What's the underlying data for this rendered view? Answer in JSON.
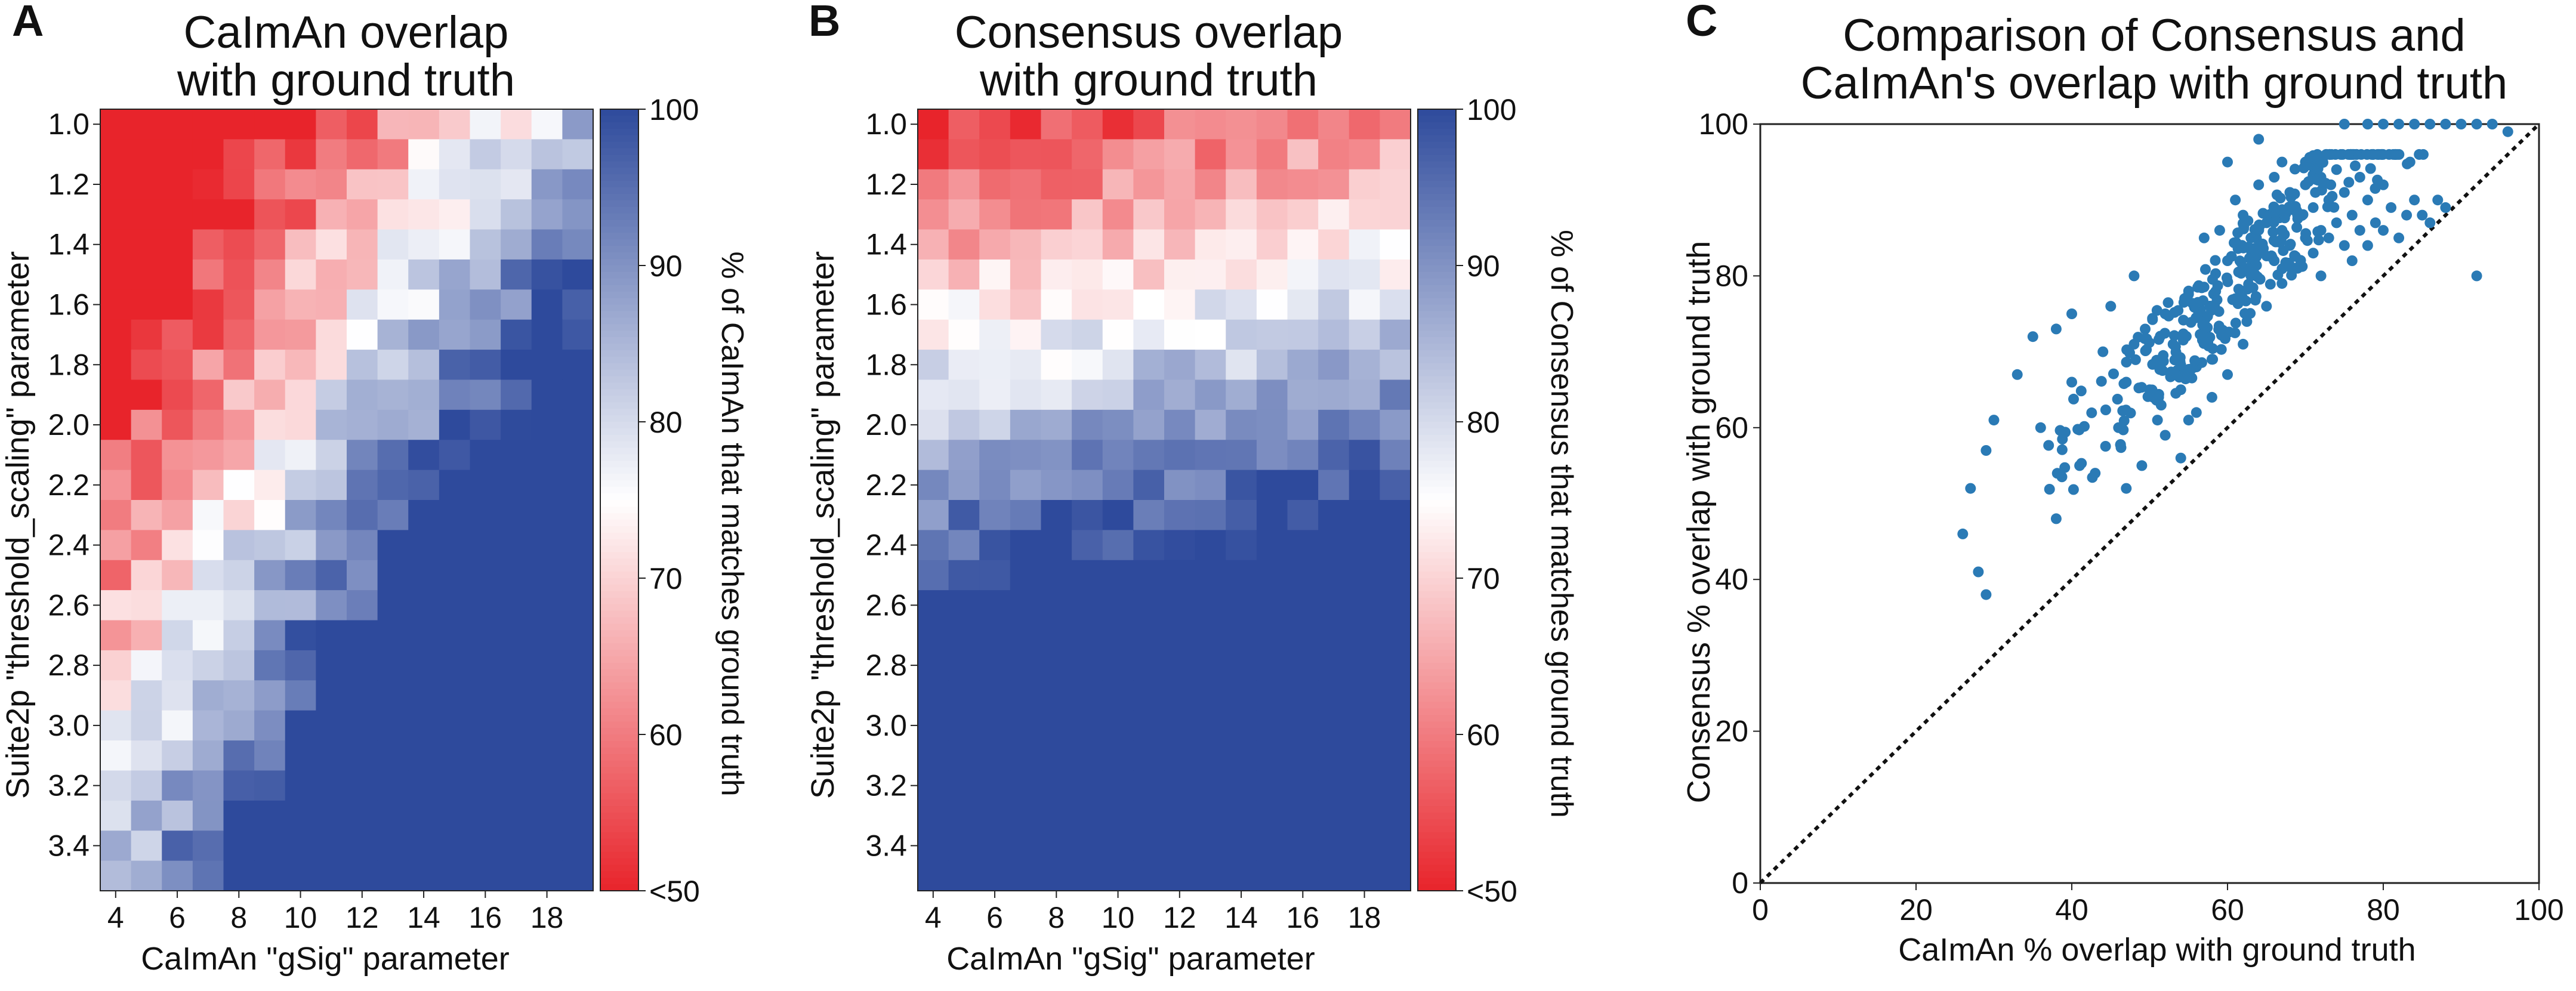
{
  "chart_data": [
    {
      "type": "heatmap",
      "panel": "A",
      "title_lines": [
        "CaImAn overlap",
        "with ground truth"
      ],
      "xlabel": "CaImAn \"gSig\" parameter",
      "ylabel": "Suite2p \"threshold_scaling\" parameter",
      "x_ticks": [
        "4",
        "6",
        "8",
        "10",
        "12",
        "14",
        "16",
        "18"
      ],
      "y_ticks": [
        "1.0",
        "1.2",
        "1.4",
        "1.6",
        "1.8",
        "2.0",
        "2.2",
        "2.4",
        "2.6",
        "2.8",
        "3.0",
        "3.2",
        "3.4"
      ],
      "n_cols": 16,
      "n_rows": 26,
      "colorbar": {
        "label": "% of CaImAn that matches ground truth",
        "ticks": [
          "<50",
          "60",
          "70",
          "80",
          "90",
          "100"
        ],
        "range": [
          50,
          100
        ],
        "colors": [
          "#e8242b",
          "#ffffff",
          "#2e4a9c"
        ]
      },
      "value_model": "approx % match estimated from color: increases with gSig and threshold_scaling"
    },
    {
      "type": "heatmap",
      "panel": "B",
      "title_lines": [
        "Consensus overlap",
        "with ground truth"
      ],
      "xlabel": "CaImAn \"gSig\" parameter",
      "ylabel": "Suite2p \"threshold_scaling\" parameter",
      "x_ticks": [
        "4",
        "6",
        "8",
        "10",
        "12",
        "14",
        "16",
        "18"
      ],
      "y_ticks": [
        "1.0",
        "1.2",
        "1.4",
        "1.6",
        "1.8",
        "2.0",
        "2.2",
        "2.4",
        "2.6",
        "2.8",
        "3.0",
        "3.2",
        "3.4"
      ],
      "n_cols": 16,
      "n_rows": 26,
      "colorbar": {
        "label": "% of Consensus that matches ground truth",
        "ticks": [
          "<50",
          "60",
          "70",
          "80",
          "90",
          "100"
        ],
        "range": [
          50,
          100
        ],
        "colors": [
          "#e8242b",
          "#ffffff",
          "#2e4a9c"
        ]
      },
      "value_model": "approx % match estimated from color: increases mainly with threshold_scaling"
    },
    {
      "type": "scatter",
      "panel": "C",
      "title_lines": [
        "Comparison of Consensus and",
        "CaImAn's overlap with ground truth"
      ],
      "xlabel": "CaImAn % overlap with ground truth",
      "ylabel": "Consensus % overlap with ground truth",
      "xlim": [
        0,
        100
      ],
      "ylim": [
        0,
        100
      ],
      "x_ticks": [
        "0",
        "20",
        "40",
        "60",
        "80",
        "100"
      ],
      "y_ticks": [
        "0",
        "20",
        "40",
        "60",
        "80",
        "100"
      ],
      "point_color": "#2a7ab5",
      "identity_line": true,
      "n_points": 416,
      "points": [
        [
          26,
          46
        ],
        [
          27,
          52
        ],
        [
          28,
          41
        ],
        [
          29,
          38
        ],
        [
          29,
          57
        ],
        [
          30,
          61
        ],
        [
          33,
          67
        ],
        [
          35,
          72
        ],
        [
          36,
          60
        ],
        [
          38,
          48
        ],
        [
          38,
          73
        ],
        [
          40,
          75
        ],
        [
          40,
          66
        ],
        [
          41,
          55
        ],
        [
          43,
          54
        ],
        [
          44,
          70
        ],
        [
          45,
          76
        ],
        [
          46,
          60
        ],
        [
          47,
          52
        ],
        [
          47,
          66
        ],
        [
          48,
          80
        ],
        [
          48,
          71
        ],
        [
          49,
          55
        ],
        [
          50,
          65
        ],
        [
          51,
          61
        ],
        [
          52,
          59
        ],
        [
          52,
          75
        ],
        [
          53,
          71
        ],
        [
          54,
          65
        ],
        [
          54,
          56
        ],
        [
          55,
          61
        ],
        [
          55,
          78
        ],
        [
          56,
          68
        ],
        [
          56,
          62
        ],
        [
          57,
          85
        ],
        [
          57,
          74
        ],
        [
          58,
          64
        ],
        [
          58,
          69
        ],
        [
          59,
          86
        ],
        [
          59,
          73
        ],
        [
          60,
          95
        ],
        [
          60,
          82
        ],
        [
          60,
          67
        ],
        [
          61,
          90
        ],
        [
          61,
          77
        ],
        [
          62,
          88
        ],
        [
          62,
          71
        ],
        [
          63,
          85
        ],
        [
          63,
          80
        ],
        [
          64,
          98
        ],
        [
          64,
          92
        ],
        [
          64,
          83
        ],
        [
          65,
          76
        ],
        [
          65,
          87
        ],
        [
          66,
          93
        ],
        [
          66,
          89
        ],
        [
          66,
          82
        ],
        [
          67,
          95
        ],
        [
          67,
          86
        ],
        [
          67,
          79
        ],
        [
          68,
          91
        ],
        [
          68,
          84
        ],
        [
          69,
          88
        ],
        [
          69,
          81
        ],
        [
          70,
          95
        ],
        [
          70,
          92
        ],
        [
          70,
          85
        ],
        [
          71,
          89
        ],
        [
          71,
          83
        ],
        [
          72,
          93
        ],
        [
          72,
          86
        ],
        [
          72,
          80
        ],
        [
          73,
          90
        ],
        [
          73,
          85
        ],
        [
          74,
          94
        ],
        [
          74,
          87
        ],
        [
          75,
          91
        ],
        [
          75,
          84
        ],
        [
          76,
          88
        ],
        [
          76,
          82
        ],
        [
          77,
          93
        ],
        [
          77,
          86
        ],
        [
          78,
          90
        ],
        [
          78,
          84
        ],
        [
          79,
          87
        ],
        [
          80,
          92
        ],
        [
          80,
          86
        ],
        [
          81,
          89
        ],
        [
          82,
          85
        ],
        [
          83,
          88
        ],
        [
          84,
          90
        ],
        [
          85,
          88
        ],
        [
          86,
          87
        ],
        [
          87,
          90
        ],
        [
          88,
          89
        ],
        [
          92,
          80
        ],
        [
          75,
          100
        ],
        [
          78,
          100
        ],
        [
          80,
          100
        ],
        [
          82,
          100
        ],
        [
          84,
          100
        ],
        [
          86,
          100
        ],
        [
          88,
          100
        ],
        [
          90,
          100
        ],
        [
          92,
          100
        ],
        [
          94,
          100
        ],
        [
          96,
          99
        ]
      ]
    }
  ],
  "panel_letters": {
    "a": "A",
    "b": "B",
    "c": "C"
  }
}
